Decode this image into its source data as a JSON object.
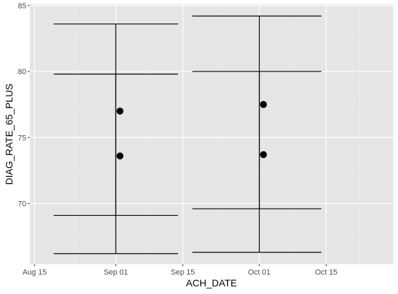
{
  "chart_data": {
    "type": "scatter",
    "title": "",
    "xlabel": "ACH_DATE",
    "ylabel": "DIAG_RATE_65_PLUS",
    "xlim": [
      "2021-08-14",
      "2021-10-29"
    ],
    "ylim": [
      65.4,
      85.1
    ],
    "x_ticks": [
      {
        "date": "2021-08-15",
        "label": "Aug 15"
      },
      {
        "date": "2021-09-01",
        "label": "Sep 01"
      },
      {
        "date": "2021-09-15",
        "label": "Sep 15"
      },
      {
        "date": "2021-10-01",
        "label": "Oct 01"
      },
      {
        "date": "2021-10-15",
        "label": "Oct 15"
      }
    ],
    "y_ticks": [
      70,
      75,
      80,
      85
    ],
    "grid": true,
    "legend": "none",
    "points": [
      {
        "x": "2021-09-01",
        "y": 77.0
      },
      {
        "x": "2021-09-01",
        "y": 73.6
      },
      {
        "x": "2021-10-01",
        "y": 77.5
      },
      {
        "x": "2021-10-01",
        "y": 73.7
      }
    ],
    "error_bars": [
      {
        "x": "2021-09-01",
        "ymin": 69.1,
        "ymax": 79.8,
        "cap_from": "2021-08-19",
        "cap_to": "2021-09-14"
      },
      {
        "x": "2021-09-01",
        "ymin": 66.2,
        "ymax": 83.6,
        "cap_from": "2021-08-19",
        "cap_to": "2021-09-14"
      },
      {
        "x": "2021-10-01",
        "ymin": 69.6,
        "ymax": 80.0,
        "cap_from": "2021-09-17",
        "cap_to": "2021-10-14"
      },
      {
        "x": "2021-10-01",
        "ymin": 66.3,
        "ymax": 84.2,
        "cap_from": "2021-09-17",
        "cap_to": "2021-10-14"
      }
    ],
    "colors": {
      "panel": "#e5e5e5",
      "grid_major": "#ffffff",
      "grid_minor": "#f2f2f2",
      "mark": "#000000"
    }
  }
}
